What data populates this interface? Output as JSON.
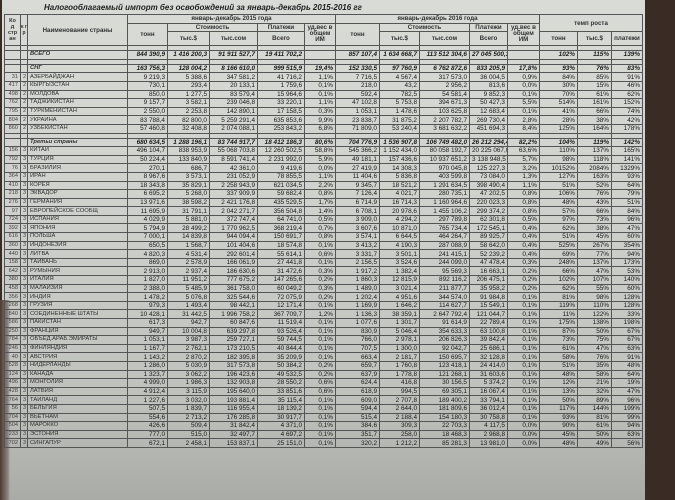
{
  "title": "Налогооблагаемый импорт без освобождений за январь-декабрь 2015-2016 гг",
  "headers": {
    "code": "Ко д стр ан",
    "group": "к г р",
    "name": "Наименование страны",
    "period_2015": "январь-декабрь 2015 года",
    "period_2016": "январь-декабрь 2016 года",
    "growth": "темп роста",
    "tons": "тонн",
    "cost": "Стоимость",
    "payments": "Платежи",
    "share": "уд.вес в общем ИМ",
    "usd": "тыс.$",
    "som": "тыс.сом",
    "total": "Всего",
    "g_tons": "тонн",
    "g_usd": "тыс.$",
    "g_pay": "платежи"
  },
  "total_row": [
    "",
    "",
    "ВСЕГО",
    "844 390,9",
    "1 416 200,3",
    "91 911 527,7",
    "19 411 702,2",
    "",
    "857 107,4",
    "1 634 668,7",
    "113 512 304,6",
    "27 045 500,3",
    "",
    "102%",
    "115%",
    "139%"
  ],
  "cis_row": [
    "",
    "",
    "СНГ",
    "163 756,3",
    "128 004,2",
    "8 166 610,0",
    "999 515,9",
    "19,4%",
    "152 330,5",
    "97 760,9",
    "6 762 872,6",
    "833 205,9",
    "17,8%",
    "93%",
    "76%",
    "83%"
  ],
  "cis": [
    [
      "31",
      "2",
      "АЗЕРБАЙДЖАН",
      "9 219,3",
      "5 388,6",
      "347 581,2",
      "41 716,2",
      "1,1%",
      "7 716,5",
      "4 567,4",
      "317 573,0",
      "36 004,5",
      "0,9%",
      "84%",
      "85%",
      "91%"
    ],
    [
      "417",
      "2",
      "КЫРГЫЗСТАН",
      "730,1",
      "293,4",
      "20 133,1",
      "1 759,6",
      "0,1%",
      "218,0",
      "43,2",
      "2 956,2",
      "813,6",
      "0,0%",
      "30%",
      "15%",
      "46%"
    ],
    [
      "498",
      "2",
      "МОЛДОВА",
      "850,0",
      "1 277,5",
      "83 579,4",
      "15 964,6",
      "0,1%",
      "592,4",
      "782,5",
      "54 581,4",
      "9 852,3",
      "0,1%",
      "70%",
      "61%",
      "62%"
    ],
    [
      "762",
      "2",
      "ТАДЖИКИСТАН",
      "9 157,7",
      "3 582,1",
      "239 046,8",
      "33 220,1",
      "1,1%",
      "47 102,8",
      "5 753,8",
      "394 671,3",
      "50 427,3",
      "5,5%",
      "514%",
      "161%",
      "152%"
    ],
    [
      "795",
      "2",
      "ТУРКМЕНИСТАН",
      "2 550,0",
      "2 253,8",
      "142 890,1",
      "17 158,5",
      "0,3%",
      "1 053,1",
      "1 478,6",
      "103 625,8",
      "12 683,4",
      "0,1%",
      "41%",
      "66%",
      "74%"
    ],
    [
      "804",
      "2",
      "УКРАИНА",
      "83 788,4",
      "82 800,0",
      "5 259 291,4",
      "635 853,6",
      "9,9%",
      "23 838,7",
      "31 875,2",
      "2 207 782,7",
      "269 730,4",
      "2,8%",
      "28%",
      "38%",
      "42%"
    ],
    [
      "860",
      "2",
      "УЗБЕКИСТАН",
      "57 460,8",
      "32 408,8",
      "2 074 088,1",
      "253 843,2",
      "6,8%",
      "71 809,0",
      "53 240,4",
      "3 681 632,2",
      "451 694,3",
      "8,4%",
      "125%",
      "164%",
      "178%"
    ]
  ],
  "third_row": [
    "",
    "",
    "Третьи страны",
    "680 634,5",
    "1 288 196,1",
    "83 744 917,7",
    "18 412 186,3",
    "80,6%",
    "704 776,9",
    "1 536 907,8",
    "106 749 482,0",
    "26 212 294,4",
    "82,2%",
    "104%",
    "119%",
    "142%"
  ],
  "third": [
    [
      "156",
      "3",
      "КИТАЙ",
      "496 104,7",
      "838 953,9",
      "55 068 703,8",
      "12 260 502,5",
      "58,8%",
      "545 366,2",
      "1 152 434,0",
      "80 058 192,7",
      "20 225 067,0",
      "63,6%",
      "110%",
      "137%",
      "165%"
    ],
    [
      "792",
      "3",
      "ТУРЦИЯ",
      "50 224,4",
      "133 840,9",
      "8 591 741,4",
      "2 231 992,0",
      "5,9%",
      "49 181,1",
      "157 436,6",
      "10 937 651,2",
      "3 138 948,5",
      "5,7%",
      "98%",
      "118%",
      "141%"
    ],
    [
      "76",
      "3",
      "БРАЗИЛИЯ",
      "270,1",
      "686,7",
      "42 361,0",
      "9 419,6",
      "0,0%",
      "27 419,9",
      "14 308,3",
      "970 045,8",
      "125 227,3",
      "3,2%",
      "10152%",
      "2084%",
      "1329%"
    ],
    [
      "364",
      "3",
      "ИРАН",
      "8 967,6",
      "3 573,1",
      "231 052,9",
      "78 855,5",
      "1,1%",
      "11 404,6",
      "5 836,8",
      "403 599,8",
      "73 084,0",
      "1,3%",
      "127%",
      "163%",
      "93%"
    ],
    [
      "410",
      "3",
      "КОРЕЯ",
      "18 343,8",
      "35 829,1",
      "2 258 943,9",
      "621 034,5",
      "2,2%",
      "9 345,7",
      "18 521,2",
      "1 291 634,5",
      "398 490,4",
      "1,1%",
      "51%",
      "52%",
      "64%"
    ],
    [
      "218",
      "3",
      "ЭКВАДОР",
      "6 695,2",
      "5 268,0",
      "337 909,9",
      "59 682,4",
      "0,8%",
      "7 126,4",
      "4 021,7",
      "280 735,1",
      "47 202,5",
      "0,8%",
      "106%",
      "76%",
      "79%"
    ],
    [
      "276",
      "3",
      "ГЕРМАНИЯ",
      "13 971,6",
      "38 598,2",
      "2 421 176,8",
      "435 529,5",
      "1,7%",
      "6 714,9",
      "16 714,3",
      "1 160 964,6",
      "220 023,3",
      "0,8%",
      "48%",
      "43%",
      "51%"
    ],
    [
      "97",
      "3",
      "ЕВРОПЕЙСКОЕ СООБЩ",
      "11 695,9",
      "31 791,1",
      "2 042 271,7",
      "356 504,8",
      "1,4%",
      "6 708,1",
      "20 978,6",
      "1 455 106,2",
      "299 374,2",
      "0,8%",
      "57%",
      "66%",
      "84%"
    ],
    [
      "724",
      "3",
      "ИСПАНИЯ",
      "4 029,9",
      "5 881,0",
      "372 747,4",
      "64 741,0",
      "0,5%",
      "3 909,0",
      "4 294,2",
      "297 789,8",
      "62 301,8",
      "0,5%",
      "97%",
      "73%",
      "96%"
    ],
    [
      "392",
      "3",
      "ЯПОНИЯ",
      "5 794,9",
      "28 499,2",
      "1 770 962,5",
      "368 219,4",
      "0,7%",
      "3 607,6",
      "10 871,0",
      "765 734,4",
      "172 545,1",
      "0,4%",
      "62%",
      "38%",
      "47%"
    ],
    [
      "616",
      "3",
      "ПОЛЬША",
      "7 000,1",
      "14 839,8",
      "944 094,4",
      "150 691,7",
      "0,8%",
      "3 574,1",
      "6 644,5",
      "464 264,7",
      "89 925,7",
      "0,4%",
      "51%",
      "45%",
      "60%"
    ],
    [
      "360",
      "3",
      "ИНДОНЕЗИЯ",
      "650,5",
      "1 568,7",
      "101 404,6",
      "18 574,8",
      "0,1%",
      "3 413,2",
      "4 190,3",
      "287 088,9",
      "58 642,0",
      "0,4%",
      "525%",
      "267%",
      "354%"
    ],
    [
      "440",
      "3",
      "ЛИТВА",
      "4 820,3",
      "4 531,4",
      "292 601,4",
      "55 614,1",
      "0,6%",
      "3 331,7",
      "3 501,1",
      "241 415,1",
      "52 239,2",
      "0,4%",
      "69%",
      "77%",
      "94%"
    ],
    [
      "158",
      "3",
      "ТАЙВАНЬ",
      "869,0",
      "2 578,9",
      "166 061,9",
      "27 441,8",
      "0,1%",
      "2 156,5",
      "3 524,6",
      "244 099,0",
      "47 478,4",
      "0,3%",
      "248%",
      "137%",
      "173%"
    ],
    [
      "642",
      "3",
      "РУМЫНИЯ",
      "2 913,0",
      "2 937,4",
      "186 630,6",
      "31 472,6",
      "0,3%",
      "1 917,2",
      "1 382,4",
      "95 569,3",
      "16 663,1",
      "0,2%",
      "66%",
      "47%",
      "53%"
    ],
    [
      "380",
      "3",
      "ИТАЛИЯ",
      "1 827,0",
      "11 951,2",
      "777 675,2",
      "147 265,6",
      "0,2%",
      "1 860,3",
      "12 815,9",
      "892 116,2",
      "206 475,1",
      "0,2%",
      "102%",
      "107%",
      "140%"
    ],
    [
      "458",
      "3",
      "МАЛАЙЗИЯ",
      "2 388,0",
      "5 485,9",
      "361 758,0",
      "60 049,2",
      "0,3%",
      "1 489,0",
      "3 021,4",
      "211 877,7",
      "35 958,2",
      "0,2%",
      "62%",
      "55%",
      "60%"
    ],
    [
      "356",
      "3",
      "ИНДИЯ",
      "1 478,2",
      "5 076,8",
      "325 544,6",
      "72 075,9",
      "0,2%",
      "1 202,4",
      "4 951,6",
      "344 574,0",
      "91 984,8",
      "0,1%",
      "81%",
      "98%",
      "128%"
    ],
    [
      "268",
      "3",
      "ГРУЗИЯ",
      "979,3",
      "1 493,4",
      "98 442,1",
      "12 171,4",
      "0,1%",
      "1 169,9",
      "1 646,2",
      "114 627,7",
      "15 549,1",
      "0,1%",
      "119%",
      "110%",
      "128%"
    ],
    [
      "840",
      "3",
      "СОЕДИНЕННЫЕ ШТАТЫ",
      "10 428,1",
      "31 442,5",
      "1 996 758,2",
      "367 709,7",
      "1,2%",
      "1 136,3",
      "38 359,1",
      "2 647 792,4",
      "121 044,7",
      "0,1%",
      "11%",
      "122%",
      "33%"
    ],
    [
      "586",
      "3",
      "ПАКИСТАН",
      "617,3",
      "942,7",
      "60 847,6",
      "11 519,4",
      "0,1%",
      "1 077,6",
      "1 301,7",
      "91 614,9",
      "22 789,4",
      "0,1%",
      "175%",
      "138%",
      "198%"
    ],
    [
      "250",
      "3",
      "ФРАНЦИЯ",
      "949,7",
      "10 004,8",
      "639 297,8",
      "93 526,4",
      "0,1%",
      "830,9",
      "5 046,4",
      "354 633,3",
      "63 100,8",
      "0,1%",
      "87%",
      "50%",
      "67%"
    ],
    [
      "784",
      "3",
      "ОБЪЕД.АРАБ.ЭМИРАТЫ",
      "1 053,1",
      "3 987,3",
      "259 727,1",
      "59 744,5",
      "0,1%",
      "766,0",
      "2 978,1",
      "206 826,3",
      "39 842,4",
      "0,1%",
      "73%",
      "75%",
      "67%"
    ],
    [
      "246",
      "3",
      "ФИНЛЯНДИЯ",
      "1 167,7",
      "2 762,1",
      "173 210,5",
      "40 844,4",
      "0,1%",
      "707,5",
      "1 300,0",
      "92 042,7",
      "25 686,1",
      "0,1%",
      "61%",
      "47%",
      "63%"
    ],
    [
      "40",
      "3",
      "АВСТРИЯ",
      "1 143,2",
      "2 870,2",
      "182 395,8",
      "35 209,9",
      "0,1%",
      "663,4",
      "2 181,7",
      "150 695,7",
      "32 128,8",
      "0,1%",
      "58%",
      "76%",
      "91%"
    ],
    [
      "528",
      "3",
      "НИДЕРЛАНДЫ",
      "1 286,0",
      "5 030,9",
      "317 573,8",
      "50 384,2",
      "0,2%",
      "659,7",
      "1 760,8",
      "123 418,1",
      "24 414,0",
      "0,1%",
      "51%",
      "35%",
      "48%"
    ],
    [
      "124",
      "3",
      "КАНАДА",
      "1 323,7",
      "3 062,2",
      "196 423,6",
      "49 532,5",
      "0,2%",
      "637,9",
      "1 778,8",
      "121 268,1",
      "31 603,6",
      "0,1%",
      "48%",
      "58%",
      "64%"
    ],
    [
      "496",
      "3",
      "МОНГОЛИЯ",
      "4 999,0",
      "1 986,3",
      "132 903,8",
      "28 550,2",
      "0,6%",
      "624,4",
      "416,8",
      "30 156,5",
      "5 374,2",
      "0,1%",
      "12%",
      "21%",
      "19%"
    ],
    [
      "428",
      "3",
      "ЛАТВИЯ",
      "4 912,4",
      "3 115,9",
      "195 640,0",
      "33 851,6",
      "0,6%",
      "618,9",
      "994,5",
      "69 305,1",
      "16 067,4",
      "0,1%",
      "13%",
      "32%",
      "47%"
    ],
    [
      "764",
      "3",
      "ТАИЛАНД",
      "1 227,6",
      "3 032,0",
      "193 881,4",
      "35 115,4",
      "0,1%",
      "609,0",
      "2 707,8",
      "189 400,2",
      "33 794,1",
      "0,1%",
      "50%",
      "89%",
      "96%"
    ],
    [
      "56",
      "3",
      "БЕЛЬГИЯ",
      "507,5",
      "1 839,7",
      "116 955,4",
      "18 139,2",
      "0,1%",
      "594,4",
      "2 644,0",
      "181 809,6",
      "36 012,4",
      "0,1%",
      "117%",
      "144%",
      "199%"
    ],
    [
      "704",
      "3",
      "ВЬЕТНАМ",
      "554,6",
      "2 713,2",
      "176 285,8",
      "30 917,7",
      "0,1%",
      "515,4",
      "2 188,4",
      "154 180,3",
      "30 758,8",
      "0,1%",
      "93%",
      "81%",
      "99%"
    ],
    [
      "504",
      "3",
      "МАРОККО",
      "426,6",
      "509,4",
      "31 842,4",
      "4 371,0",
      "0,1%",
      "384,6",
      "309,3",
      "22 703,3",
      "4 117,5",
      "0,0%",
      "90%",
      "61%",
      "94%"
    ],
    [
      "233",
      "3",
      "ЭСТОНИЯ",
      "777,0",
      "515,0",
      "32 497,7",
      "4 697,2",
      "0,1%",
      "351,7",
      "258,0",
      "18 468,3",
      "2 968,8",
      "0,0%",
      "45%",
      "50%",
      "63%"
    ],
    [
      "702",
      "3",
      "СИНГАПУР",
      "672,1",
      "2 458,1",
      "153 837,1",
      "25 151,0",
      "0,1%",
      "320,2",
      "1 212,2",
      "85 281,3",
      "13 981,0",
      "0,0%",
      "48%",
      "49%",
      "56%"
    ]
  ]
}
